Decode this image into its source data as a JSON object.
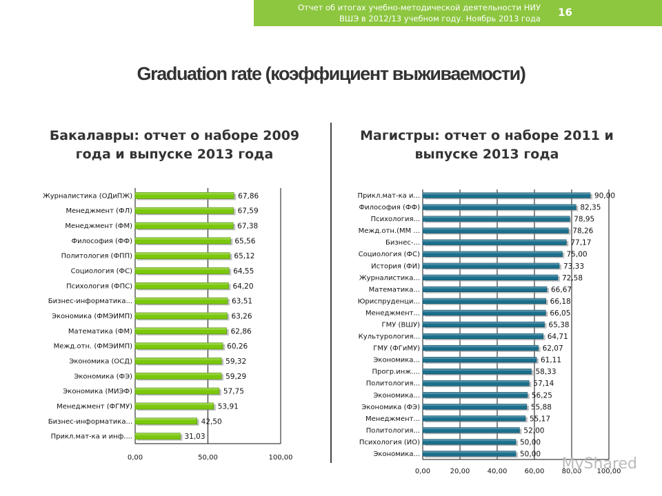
{
  "header": {
    "line1": "Отчет об итогах учебно-методической деятельности НИУ",
    "line2": "ВШЭ в 2012/13 учебном году. Ноябрь 2013 года",
    "page_number": "16"
  },
  "page_title": "Graduation rate (коэффициент выживаемости)",
  "watermark": "MyShared",
  "colors": {
    "header_bg": "#8dc63f",
    "bachelor_bar": "#7ac70c",
    "master_bar": "#1b6f8c"
  },
  "chart_data": [
    {
      "type": "bar",
      "orientation": "horizontal",
      "title": "Бакалавры: отчет о наборе 2009 года и выпуске 2013 года",
      "title_lines": [
        "Бакалавры: отчет о наборе 2009",
        "года и выпуске 2013 года"
      ],
      "categories": [
        "Журналистика (ОДиПЖ)",
        "Менеджмент (ФЛ)",
        "Менеджмент (ФМ)",
        "Философия (ФФ)",
        "Политология (ФПП)",
        "Социология (ФС)",
        "Психология (ФПС)",
        "Бизнес-информатика...",
        "Экономика (ФМЭИМП)",
        "Математика (ФМ)",
        "Межд.отн. (ФМЭИМП)",
        "Экономика (ОСД)",
        "Экономика (ФЭ)",
        "Экономика (МИЭФ)",
        "Менеджмент (ФГМУ)",
        "Бизнес-информатика...",
        "Прикл.мат-ка и инф...."
      ],
      "values": [
        67.86,
        67.59,
        67.38,
        65.56,
        65.12,
        64.55,
        64.2,
        63.51,
        63.26,
        62.86,
        60.26,
        59.32,
        59.29,
        57.75,
        53.91,
        42.5,
        31.03
      ],
      "value_labels": [
        "67,86",
        "67,59",
        "67,38",
        "65,56",
        "65,12",
        "64,55",
        "64,20",
        "63,51",
        "63,26",
        "62,86",
        "60,26",
        "59,32",
        "59,29",
        "57,75",
        "53,91",
        "42,50",
        "31,03"
      ],
      "xlim": [
        0,
        100
      ],
      "x_ticks": [
        0,
        50,
        100
      ],
      "x_tick_labels": [
        "0,00",
        "50,00",
        "100,00"
      ],
      "grid": true
    },
    {
      "type": "bar",
      "orientation": "horizontal",
      "title": "Магистры: отчет о наборе 2011 и выпуске 2013 года",
      "title_lines": [
        "Магистры: отчет о наборе 2011 и",
        "выпуске 2013 года"
      ],
      "categories": [
        "Прикл.мат-ка и...",
        "Философия (ФФ)",
        "Психология...",
        "Межд.отн.(ММ ...",
        "Бизнес-...",
        "Социология (ФС)",
        "История (ФИ)",
        "Журналистика...",
        "Математика...",
        "Юриспруденци...",
        "Менеджмент...",
        "ГМУ (ВШУ)",
        "Культурология...",
        "ГМУ (ФГиМУ)",
        "Экономика...",
        "Прогр.инж....",
        "Политология...",
        "Экономика...",
        "Экономика (ФЭ)",
        "Менеджмент...",
        "Политология...",
        "Психология (ИО)",
        "Экономика..."
      ],
      "values": [
        90.0,
        82.35,
        78.95,
        78.26,
        77.17,
        75.0,
        73.33,
        72.58,
        66.67,
        66.18,
        66.05,
        65.38,
        64.71,
        62.07,
        61.11,
        58.33,
        57.14,
        56.25,
        55.88,
        55.17,
        52.0,
        50.0,
        50.0
      ],
      "value_labels": [
        "90,00",
        "82,35",
        "78,95",
        "78,26",
        "77,17",
        "75,00",
        "73,33",
        "72,58",
        "66,67",
        "66,18",
        "66,05",
        "65,38",
        "64,71",
        "62,07",
        "61,11",
        "58,33",
        "57,14",
        "56,25",
        "55,88",
        "55,17",
        "52,00",
        "50,00",
        "50,00"
      ],
      "xlim": [
        0,
        100
      ],
      "x_ticks": [
        0,
        20,
        40,
        60,
        80,
        100
      ],
      "x_tick_labels": [
        "0,00",
        "20,00",
        "40,00",
        "60,00",
        "80,00",
        "100,00"
      ],
      "grid": true
    }
  ]
}
